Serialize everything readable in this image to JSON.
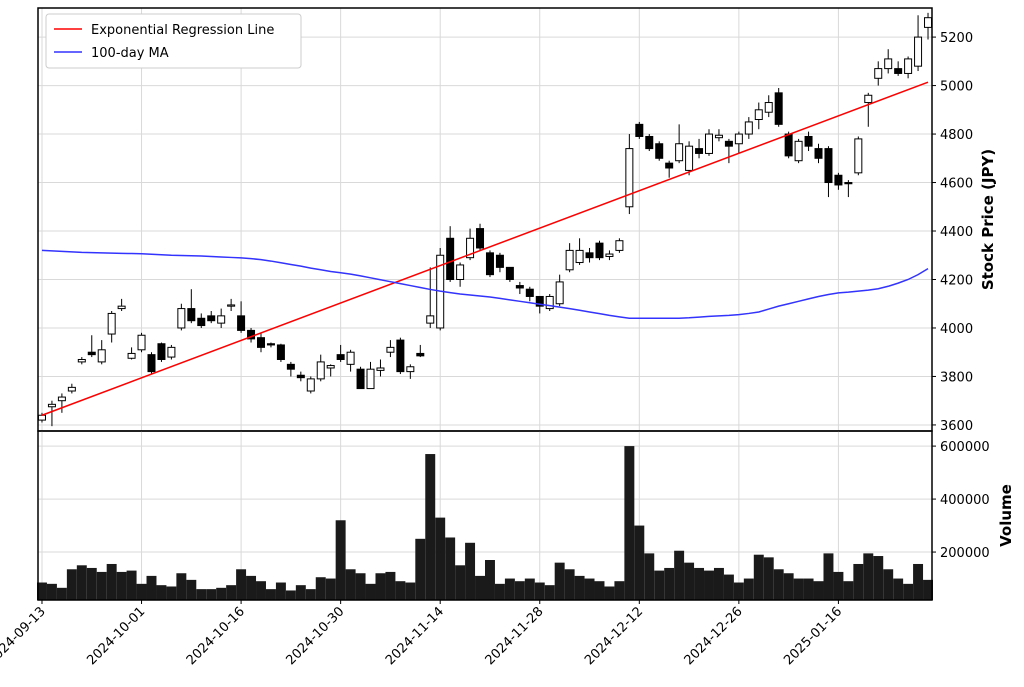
{
  "chart_data": [
    {
      "type": "candlestick",
      "y_label": "Stock Price (JPY)",
      "xlim": [
        -0.4,
        89.4
      ],
      "ylim": [
        3575,
        5320
      ],
      "yticks": [
        3600,
        3800,
        4000,
        4200,
        4400,
        4600,
        4800,
        5000,
        5200
      ],
      "grid": true,
      "legend": "upper left",
      "up_color": "#ffffff",
      "down_color": "#000000",
      "open": [
        3620,
        3675,
        3700,
        3740,
        3860,
        3900,
        3860,
        3975,
        4080,
        3875,
        3910,
        3890,
        3935,
        3880,
        4000,
        4080,
        4040,
        4050,
        4020,
        4090,
        4050,
        3990,
        3960,
        3935,
        3930,
        3850,
        3805,
        3740,
        3790,
        3835,
        3890,
        3850,
        3830,
        3750,
        3825,
        3900,
        3950,
        3820,
        3895,
        4020,
        4000,
        4370,
        4200,
        4290,
        4410,
        4310,
        4300,
        4250,
        4175,
        4160,
        4130,
        4080,
        4100,
        4240,
        4270,
        4310,
        4350,
        4295,
        4320,
        4500,
        4840,
        4790,
        4760,
        4680,
        4690,
        4650,
        4740,
        4720,
        4785,
        4770,
        4760,
        4800,
        4860,
        4890,
        4970,
        4800,
        4690,
        4790,
        4740,
        4740,
        4630,
        4600,
        4640,
        4930,
        5030,
        5070,
        5070,
        5050,
        5080,
        5240
      ],
      "high": [
        3650,
        3700,
        3730,
        3770,
        3880,
        3970,
        3950,
        4070,
        4120,
        3920,
        3980,
        3900,
        3940,
        3930,
        4100,
        4160,
        4060,
        4070,
        4080,
        4120,
        4110,
        4000,
        3980,
        3940,
        3935,
        3860,
        3820,
        3800,
        3890,
        3850,
        3930,
        3910,
        3840,
        3860,
        3870,
        3950,
        3960,
        3850,
        3930,
        4250,
        4330,
        4420,
        4270,
        4410,
        4430,
        4320,
        4310,
        4250,
        4190,
        4170,
        4130,
        4140,
        4220,
        4350,
        4370,
        4330,
        4360,
        4320,
        4370,
        4800,
        4850,
        4800,
        4770,
        4690,
        4840,
        4770,
        4780,
        4820,
        4820,
        4780,
        4810,
        4870,
        4930,
        4960,
        4990,
        4810,
        4780,
        4810,
        4760,
        4750,
        4640,
        4610,
        4790,
        4970,
        5100,
        5150,
        5100,
        5120,
        5290,
        5300
      ],
      "low": [
        3610,
        3595,
        3650,
        3730,
        3850,
        3880,
        3850,
        3940,
        4070,
        3870,
        3900,
        3810,
        3860,
        3870,
        3990,
        4020,
        4000,
        4020,
        4000,
        4070,
        3980,
        3940,
        3900,
        3920,
        3860,
        3800,
        3780,
        3730,
        3780,
        3800,
        3860,
        3820,
        3750,
        3750,
        3800,
        3880,
        3810,
        3790,
        3880,
        4000,
        3990,
        4190,
        4170,
        4280,
        4320,
        4210,
        4230,
        4190,
        4140,
        4110,
        4060,
        4070,
        4090,
        4230,
        4260,
        4270,
        4280,
        4280,
        4310,
        4470,
        4780,
        4730,
        4690,
        4620,
        4680,
        4630,
        4700,
        4710,
        4770,
        4680,
        4720,
        4780,
        4820,
        4870,
        4830,
        4700,
        4680,
        4730,
        4680,
        4540,
        4570,
        4540,
        4630,
        4830,
        5000,
        5050,
        5040,
        5030,
        5060,
        5190
      ],
      "close": [
        3640,
        3685,
        3715,
        3755,
        3870,
        3890,
        3910,
        4060,
        4090,
        3895,
        3970,
        3820,
        3870,
        3920,
        4080,
        4030,
        4010,
        4030,
        4050,
        4095,
        3990,
        3955,
        3920,
        3930,
        3870,
        3830,
        3795,
        3790,
        3860,
        3845,
        3870,
        3900,
        3750,
        3830,
        3835,
        3920,
        3820,
        3840,
        3885,
        4050,
        4300,
        4200,
        4260,
        4370,
        4330,
        4220,
        4250,
        4200,
        4165,
        4130,
        4090,
        4130,
        4190,
        4320,
        4320,
        4290,
        4290,
        4305,
        4360,
        4740,
        4790,
        4740,
        4700,
        4660,
        4760,
        4750,
        4720,
        4800,
        4795,
        4750,
        4800,
        4850,
        4900,
        4930,
        4840,
        4710,
        4770,
        4750,
        4700,
        4600,
        4590,
        4595,
        4780,
        4960,
        5070,
        5110,
        5050,
        5110,
        5200,
        5280
      ],
      "series": [
        {
          "name": "Exponential Regression Line",
          "color": "#ff0000",
          "x": [
            0,
            89
          ],
          "values": [
            3640,
            5014
          ]
        },
        {
          "name": "100-day MA",
          "color": "#3333ff",
          "values": [
            4320,
            4318,
            4316,
            4314,
            4312,
            4311,
            4310,
            4309,
            4308,
            4307,
            4306,
            4304,
            4302,
            4300,
            4299,
            4298,
            4297,
            4295,
            4293,
            4291,
            4289,
            4286,
            4282,
            4276,
            4269,
            4262,
            4255,
            4247,
            4240,
            4233,
            4228,
            4222,
            4215,
            4207,
            4199,
            4191,
            4183,
            4175,
            4167,
            4159,
            4152,
            4146,
            4140,
            4136,
            4132,
            4128,
            4122,
            4116,
            4110,
            4104,
            4098,
            4092,
            4086,
            4080,
            4073,
            4066,
            4059,
            4052,
            4046,
            4040,
            4040,
            4040,
            4040,
            4040,
            4040,
            4042,
            4045,
            4048,
            4050,
            4052,
            4055,
            4060,
            4066,
            4078,
            4090,
            4100,
            4110,
            4120,
            4130,
            4138,
            4145,
            4148,
            4152,
            4156,
            4162,
            4172,
            4185,
            4200,
            4220,
            4245
          ]
        }
      ]
    },
    {
      "type": "bar",
      "y_label": "Volume",
      "xlim": [
        -0.4,
        89.4
      ],
      "ylim": [
        19000,
        657000
      ],
      "yticks": [
        200000,
        400000,
        600000
      ],
      "grid": true,
      "color": "#1a1a1a",
      "xticks": [
        {
          "value": 0,
          "label": "2024-09-13"
        },
        {
          "value": 10,
          "label": "2024-10-01"
        },
        {
          "value": 20,
          "label": "2024-10-16"
        },
        {
          "value": 30,
          "label": "2024-10-30"
        },
        {
          "value": 40,
          "label": "2024-11-14"
        },
        {
          "value": 50,
          "label": "2024-11-28"
        },
        {
          "value": 60,
          "label": "2024-12-12"
        },
        {
          "value": 70,
          "label": "2024-12-26"
        },
        {
          "value": 80,
          "label": "2025-01-16"
        }
      ],
      "values": [
        85000,
        80000,
        65000,
        135000,
        150000,
        140000,
        125000,
        155000,
        125000,
        130000,
        80000,
        110000,
        75000,
        70000,
        120000,
        95000,
        60000,
        60000,
        65000,
        75000,
        135000,
        110000,
        90000,
        60000,
        85000,
        55000,
        75000,
        60000,
        105000,
        100000,
        320000,
        135000,
        120000,
        80000,
        120000,
        125000,
        90000,
        85000,
        250000,
        570000,
        330000,
        255000,
        150000,
        235000,
        110000,
        170000,
        80000,
        100000,
        90000,
        100000,
        85000,
        75000,
        160000,
        135000,
        110000,
        100000,
        90000,
        70000,
        90000,
        600000,
        300000,
        195000,
        130000,
        140000,
        205000,
        160000,
        140000,
        130000,
        140000,
        115000,
        85000,
        100000,
        190000,
        180000,
        135000,
        120000,
        100000,
        100000,
        90000,
        195000,
        125000,
        90000,
        155000,
        195000,
        185000,
        135000,
        100000,
        80000,
        155000,
        95000
      ]
    }
  ]
}
